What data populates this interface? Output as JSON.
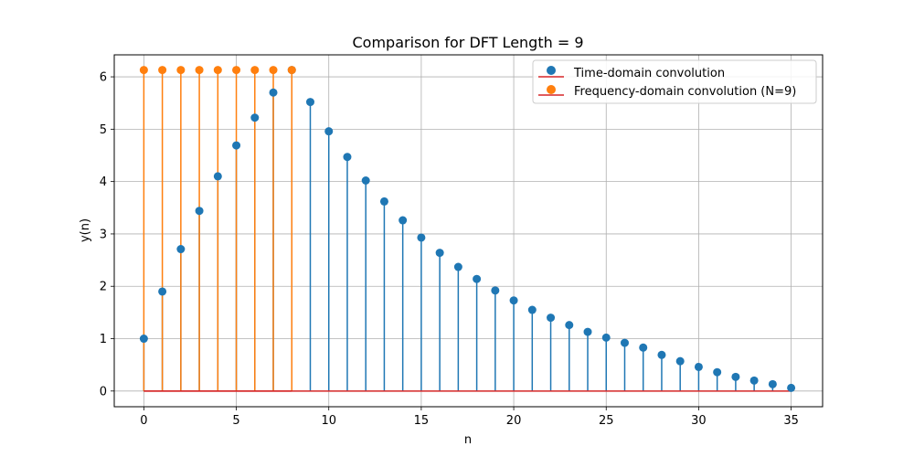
{
  "chart_data": {
    "type": "stem",
    "title": "Comparison for DFT Length = 9",
    "xlabel": "n",
    "ylabel": "y(n)",
    "xlim": [
      -1.6,
      36.7
    ],
    "ylim": [
      -0.3,
      6.42
    ],
    "xticks": [
      0,
      5,
      10,
      15,
      20,
      25,
      30,
      35
    ],
    "yticks": [
      0,
      1,
      2,
      3,
      4,
      5,
      6
    ],
    "grid": true,
    "legend_position": "top-right",
    "baseline_color": "#d62728",
    "series": [
      {
        "name": "Time-domain convolution",
        "color": "#1f77b4",
        "x": [
          0,
          1,
          2,
          3,
          4,
          5,
          6,
          7,
          8,
          9,
          10,
          11,
          12,
          13,
          14,
          15,
          16,
          17,
          18,
          19,
          20,
          21,
          22,
          23,
          24,
          25,
          26,
          27,
          28,
          29,
          30,
          31,
          32,
          33,
          34,
          35
        ],
        "values": [
          1.0,
          1.9,
          2.71,
          3.44,
          4.1,
          4.69,
          5.22,
          5.7,
          6.13,
          5.52,
          4.96,
          4.47,
          4.02,
          3.62,
          3.26,
          2.93,
          2.64,
          2.37,
          2.14,
          1.92,
          1.73,
          1.55,
          1.4,
          1.26,
          1.13,
          1.02,
          0.92,
          0.83,
          0.69,
          0.57,
          0.46,
          0.36,
          0.27,
          0.2,
          0.13,
          0.06
        ]
      },
      {
        "name": "Frequency-domain convolution (N=9)",
        "color": "#ff7f0e",
        "x": [
          0,
          1,
          2,
          3,
          4,
          5,
          6,
          7,
          8
        ],
        "values": [
          6.13,
          6.13,
          6.13,
          6.13,
          6.13,
          6.13,
          6.13,
          6.13,
          6.13
        ]
      }
    ]
  }
}
